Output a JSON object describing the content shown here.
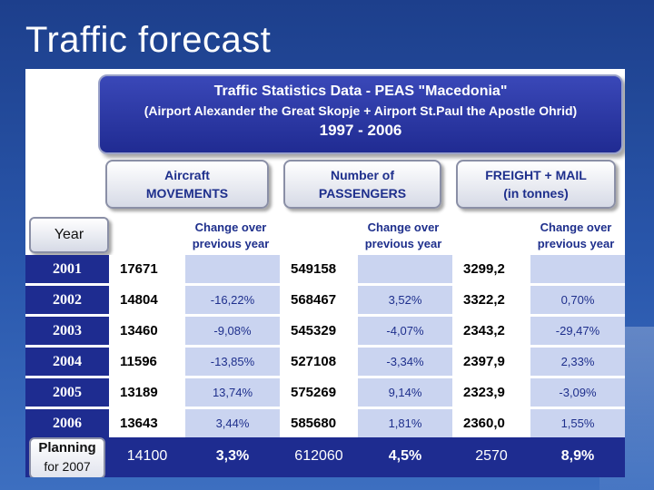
{
  "slide_title": "Traffic forecast",
  "header": {
    "line1": "Traffic Statistics Data - PEAS \"Macedonia\"",
    "line2": "(Airport Alexander the Great Skopje + Airport St.Paul the Apostle Ohrid)",
    "line3": "1997 - 2006"
  },
  "categories": {
    "aircraft": [
      "Aircraft",
      "MOVEMENTS"
    ],
    "passengers": [
      "Number of",
      "PASSENGERS"
    ],
    "freight": [
      "FREIGHT + MAIL",
      "(in tonnes)"
    ]
  },
  "year_label": "Year",
  "change_label": [
    "Change over",
    "previous year"
  ],
  "rows": [
    {
      "year": "2001",
      "movements": "17671",
      "mov_change": "",
      "passengers": "549158",
      "pax_change": "",
      "freight": "3299,2",
      "frt_change": ""
    },
    {
      "year": "2002",
      "movements": "14804",
      "mov_change": "-16,22%",
      "passengers": "568467",
      "pax_change": "3,52%",
      "freight": "3322,2",
      "frt_change": "0,70%"
    },
    {
      "year": "2003",
      "movements": "13460",
      "mov_change": "-9,08%",
      "passengers": "545329",
      "pax_change": "-4,07%",
      "freight": "2343,2",
      "frt_change": "-29,47%"
    },
    {
      "year": "2004",
      "movements": "11596",
      "mov_change": "-13,85%",
      "passengers": "527108",
      "pax_change": "-3,34%",
      "freight": "2397,9",
      "frt_change": "2,33%"
    },
    {
      "year": "2005",
      "movements": "13189",
      "mov_change": "13,74%",
      "passengers": "575269",
      "pax_change": "9,14%",
      "freight": "2323,9",
      "frt_change": "-3,09%"
    },
    {
      "year": "2006",
      "movements": "13643",
      "mov_change": "3,44%",
      "passengers": "585680",
      "pax_change": "1,81%",
      "freight": "2360,0",
      "frt_change": "1,55%"
    }
  ],
  "planning": {
    "label_line1": "Planning",
    "label_line2": "for 2007",
    "movements": "14100",
    "mov_change": "3,3%",
    "passengers": "612060",
    "pax_change": "4,5%",
    "freight": "2570",
    "frt_change": "8,9%"
  }
}
